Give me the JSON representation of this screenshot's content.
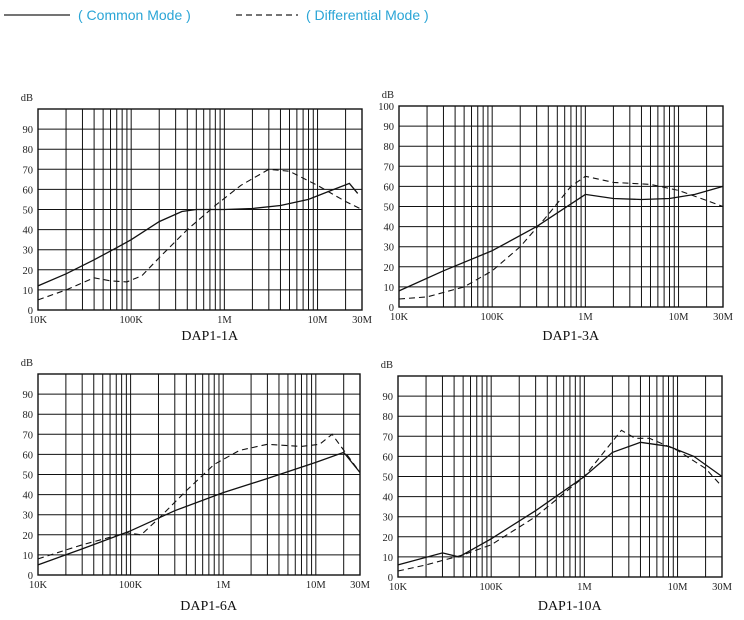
{
  "legend": {
    "common_label": "( Common Mode )",
    "differential_label": "( Differential Mode )"
  },
  "chart_data": [
    {
      "type": "line",
      "title": "DAP1-1A",
      "ylabel": "dB",
      "x_scale": "log",
      "xlim": [
        10000,
        30000000
      ],
      "ylim": [
        0,
        100
      ],
      "x_ticks": [
        {
          "value": 10000,
          "label": "10K"
        },
        {
          "value": 100000,
          "label": "100K"
        },
        {
          "value": 1000000,
          "label": "1M"
        },
        {
          "value": 10000000,
          "label": "10M"
        },
        {
          "value": 30000000,
          "label": "30M"
        }
      ],
      "y_ticks": [
        0,
        10,
        20,
        30,
        40,
        50,
        60,
        70,
        80,
        90
      ],
      "series": [
        {
          "name": "Common Mode",
          "style": "solid",
          "x": [
            10000,
            20000,
            40000,
            70000,
            100000,
            200000,
            350000,
            500000,
            1000000,
            2000000,
            4000000,
            8000000,
            15000000,
            22000000,
            27000000
          ],
          "y": [
            12,
            18,
            25,
            31,
            35,
            44,
            49,
            50,
            50,
            50.5,
            52,
            55,
            60,
            63,
            58
          ]
        },
        {
          "name": "Differential Mode",
          "style": "dashed",
          "x": [
            10000,
            20000,
            40000,
            60000,
            90000,
            130000,
            200000,
            400000,
            800000,
            1500000,
            3000000,
            5000000,
            10000000,
            20000000,
            30000000
          ],
          "y": [
            5,
            10,
            16,
            14.5,
            14,
            17,
            26,
            40,
            52,
            62,
            70,
            69,
            62,
            54,
            50
          ]
        }
      ]
    },
    {
      "type": "line",
      "title": "DAP1-3A",
      "ylabel": "dB",
      "x_scale": "log",
      "xlim": [
        10000,
        30000000
      ],
      "ylim": [
        0,
        100
      ],
      "x_ticks": [
        {
          "value": 10000,
          "label": "10K"
        },
        {
          "value": 100000,
          "label": "100K"
        },
        {
          "value": 1000000,
          "label": "1M"
        },
        {
          "value": 10000000,
          "label": "10M"
        },
        {
          "value": 30000000,
          "label": "30M"
        }
      ],
      "y_ticks": [
        0,
        10,
        20,
        30,
        40,
        50,
        60,
        70,
        80,
        90,
        100
      ],
      "series": [
        {
          "name": "Common Mode",
          "style": "solid",
          "x": [
            10000,
            30000,
            100000,
            300000,
            1000000,
            2000000,
            4000000,
            8000000,
            15000000,
            30000000
          ],
          "y": [
            8,
            18,
            28,
            40,
            56,
            54,
            53.5,
            54,
            56,
            60
          ]
        },
        {
          "name": "Differential Mode",
          "style": "dashed",
          "x": [
            10000,
            20000,
            50000,
            100000,
            200000,
            400000,
            700000,
            1000000,
            2000000,
            5000000,
            10000000,
            20000000,
            30000000
          ],
          "y": [
            4,
            5,
            10,
            18,
            30,
            46,
            60,
            65,
            62,
            61,
            58,
            53,
            50
          ]
        }
      ]
    },
    {
      "type": "line",
      "title": "DAP1-6A",
      "ylabel": "dB",
      "x_scale": "log",
      "xlim": [
        10000,
        30000000
      ],
      "ylim": [
        0,
        100
      ],
      "x_ticks": [
        {
          "value": 10000,
          "label": "10K"
        },
        {
          "value": 100000,
          "label": "100K"
        },
        {
          "value": 1000000,
          "label": "1M"
        },
        {
          "value": 10000000,
          "label": "10M"
        },
        {
          "value": 30000000,
          "label": "30M"
        }
      ],
      "y_ticks": [
        0,
        10,
        20,
        30,
        40,
        50,
        60,
        70,
        80,
        90
      ],
      "series": [
        {
          "name": "Common Mode",
          "style": "solid",
          "x": [
            10000,
            30000,
            100000,
            300000,
            1000000,
            3000000,
            10000000,
            20000000,
            30000000
          ],
          "y": [
            5,
            13,
            22,
            32,
            41,
            48,
            56,
            61,
            51
          ]
        },
        {
          "name": "Differential Mode",
          "style": "dashed",
          "x": [
            10000,
            30000,
            90000,
            130000,
            200000,
            400000,
            800000,
            1500000,
            3000000,
            7000000,
            11000000,
            15000000,
            30000000
          ],
          "y": [
            8,
            15,
            21,
            20,
            28,
            42,
            55,
            62,
            65,
            64,
            65,
            70,
            51
          ]
        }
      ]
    },
    {
      "type": "line",
      "title": "DAP1-10A",
      "ylabel": "dB",
      "x_scale": "log",
      "xlim": [
        10000,
        30000000
      ],
      "ylim": [
        0,
        100
      ],
      "x_ticks": [
        {
          "value": 10000,
          "label": "10K"
        },
        {
          "value": 100000,
          "label": "100K"
        },
        {
          "value": 1000000,
          "label": "1M"
        },
        {
          "value": 10000000,
          "label": "10M"
        },
        {
          "value": 30000000,
          "label": "30M"
        }
      ],
      "y_ticks": [
        0,
        10,
        20,
        30,
        40,
        50,
        60,
        70,
        80,
        90
      ],
      "series": [
        {
          "name": "Common Mode",
          "style": "solid",
          "x": [
            10000,
            30000,
            45000,
            100000,
            300000,
            1000000,
            2000000,
            4000000,
            8000000,
            15000000,
            30000000
          ],
          "y": [
            6,
            12,
            10,
            19,
            33,
            50,
            62,
            67,
            65,
            60,
            50
          ]
        },
        {
          "name": "Differential Mode",
          "style": "dashed",
          "x": [
            10000,
            20000,
            50000,
            100000,
            300000,
            1000000,
            2500000,
            3500000,
            5000000,
            10000000,
            20000000,
            30000000
          ],
          "y": [
            3,
            6,
            11,
            16,
            30,
            50,
            73,
            69,
            69,
            63,
            54,
            45
          ]
        }
      ]
    }
  ]
}
